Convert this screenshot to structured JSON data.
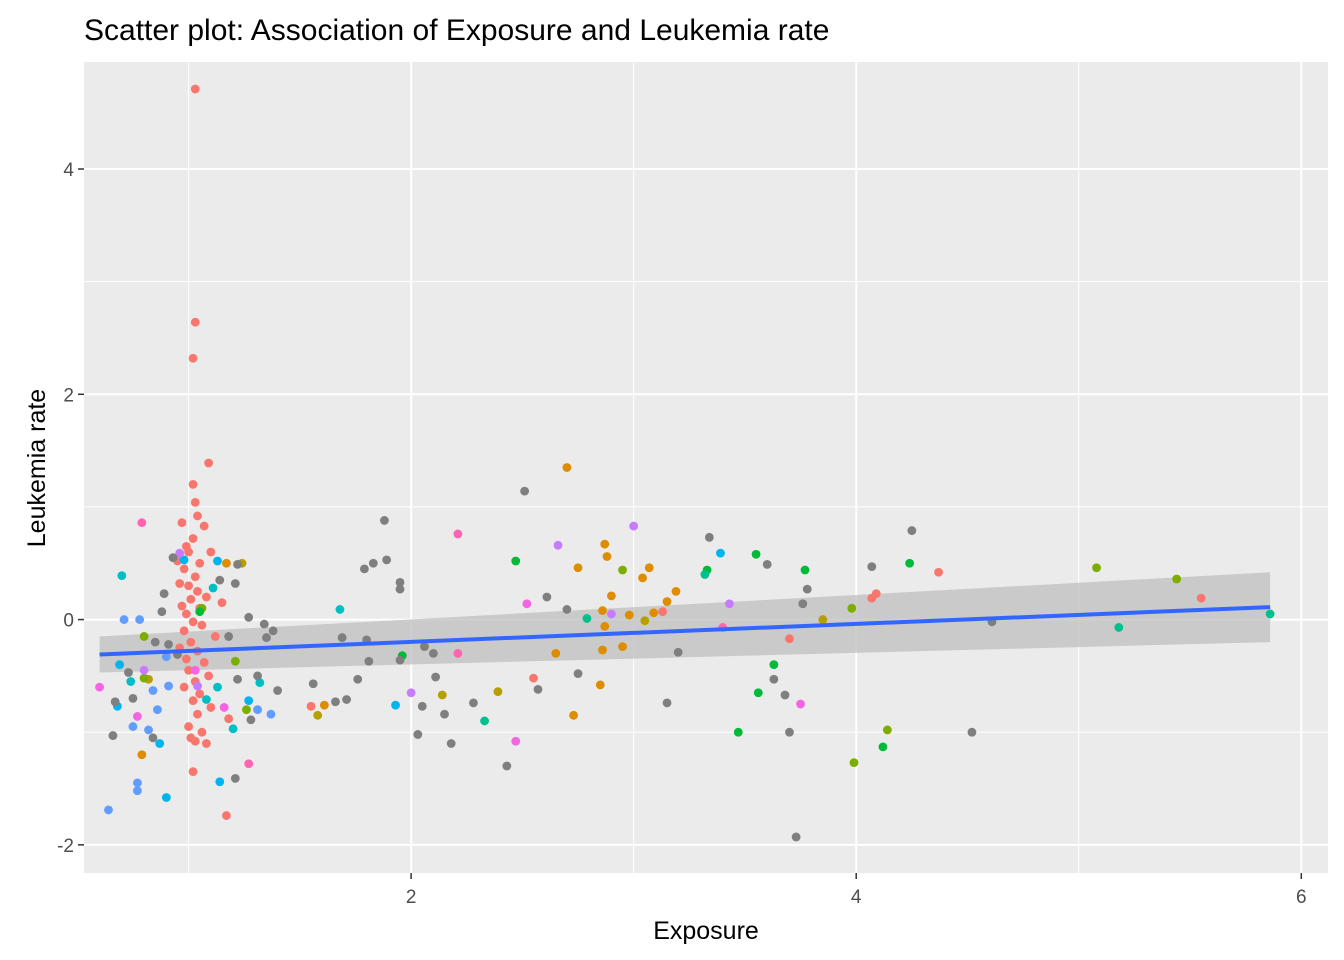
{
  "chart_data": {
    "type": "scatter",
    "title": "Scatter plot: Association of Exposure and Leukemia rate",
    "xlabel": "Exposure",
    "ylabel": "Leukemia rate",
    "xlim": [
      0.53,
      6.12
    ],
    "ylim": [
      -2.25,
      4.95
    ],
    "x_ticks": [
      2,
      4,
      6
    ],
    "y_ticks": [
      -2,
      0,
      2,
      4
    ],
    "x_tick_labels": [
      "2",
      "4",
      "6"
    ],
    "y_tick_labels": [
      "-2",
      "0",
      "2",
      "4"
    ],
    "grid": true,
    "panel_background": "#ebebeb",
    "grid_color": "#ffffff",
    "legend": "none",
    "palette": [
      "#f8766d",
      "#de8c00",
      "#b79f00",
      "#7cae00",
      "#00ba38",
      "#00c08b",
      "#00bfc4",
      "#00b4f0",
      "#619cff",
      "#c77cff",
      "#f564e3",
      "#ff64b0",
      "#7f7f7f"
    ],
    "points": [
      {
        "x": 1.03,
        "y": 4.71,
        "c": 0
      },
      {
        "x": 1.03,
        "y": 2.64,
        "c": 0
      },
      {
        "x": 1.02,
        "y": 2.32,
        "c": 0
      },
      {
        "x": 1.09,
        "y": 1.39,
        "c": 0
      },
      {
        "x": 1.02,
        "y": 1.2,
        "c": 0
      },
      {
        "x": 1.03,
        "y": 1.04,
        "c": 0
      },
      {
        "x": 1.04,
        "y": 0.92,
        "c": 0
      },
      {
        "x": 0.97,
        "y": 0.86,
        "c": 0
      },
      {
        "x": 1.07,
        "y": 0.83,
        "c": 0
      },
      {
        "x": 1.02,
        "y": 0.72,
        "c": 0
      },
      {
        "x": 0.99,
        "y": 0.65,
        "c": 0
      },
      {
        "x": 1.0,
        "y": 0.6,
        "c": 0
      },
      {
        "x": 1.1,
        "y": 0.6,
        "c": 0
      },
      {
        "x": 0.95,
        "y": 0.52,
        "c": 0
      },
      {
        "x": 1.05,
        "y": 0.5,
        "c": 0
      },
      {
        "x": 0.98,
        "y": 0.45,
        "c": 0
      },
      {
        "x": 1.03,
        "y": 0.38,
        "c": 0
      },
      {
        "x": 0.96,
        "y": 0.32,
        "c": 0
      },
      {
        "x": 1.0,
        "y": 0.3,
        "c": 0
      },
      {
        "x": 1.04,
        "y": 0.25,
        "c": 0
      },
      {
        "x": 1.08,
        "y": 0.2,
        "c": 0
      },
      {
        "x": 1.01,
        "y": 0.18,
        "c": 0
      },
      {
        "x": 0.97,
        "y": 0.12,
        "c": 0
      },
      {
        "x": 1.05,
        "y": 0.1,
        "c": 0
      },
      {
        "x": 1.15,
        "y": 0.15,
        "c": 0
      },
      {
        "x": 0.99,
        "y": 0.05,
        "c": 0
      },
      {
        "x": 1.02,
        "y": -0.02,
        "c": 0
      },
      {
        "x": 1.06,
        "y": -0.05,
        "c": 0
      },
      {
        "x": 0.98,
        "y": -0.1,
        "c": 0
      },
      {
        "x": 1.12,
        "y": -0.15,
        "c": 0
      },
      {
        "x": 1.01,
        "y": -0.2,
        "c": 0
      },
      {
        "x": 0.96,
        "y": -0.25,
        "c": 0
      },
      {
        "x": 1.04,
        "y": -0.28,
        "c": 0
      },
      {
        "x": 0.99,
        "y": -0.35,
        "c": 0
      },
      {
        "x": 1.07,
        "y": -0.38,
        "c": 0
      },
      {
        "x": 1.0,
        "y": -0.45,
        "c": 0
      },
      {
        "x": 1.09,
        "y": -0.5,
        "c": 0
      },
      {
        "x": 1.03,
        "y": -0.55,
        "c": 0
      },
      {
        "x": 0.98,
        "y": -0.6,
        "c": 0
      },
      {
        "x": 1.05,
        "y": -0.66,
        "c": 0
      },
      {
        "x": 1.02,
        "y": -0.72,
        "c": 0
      },
      {
        "x": 1.1,
        "y": -0.78,
        "c": 0
      },
      {
        "x": 1.04,
        "y": -0.84,
        "c": 0
      },
      {
        "x": 1.18,
        "y": -0.88,
        "c": 0
      },
      {
        "x": 1.0,
        "y": -0.95,
        "c": 0
      },
      {
        "x": 1.06,
        "y": -1.0,
        "c": 0
      },
      {
        "x": 1.01,
        "y": -1.05,
        "c": 0
      },
      {
        "x": 1.03,
        "y": -1.08,
        "c": 0
      },
      {
        "x": 1.08,
        "y": -1.1,
        "c": 0
      },
      {
        "x": 1.02,
        "y": -1.35,
        "c": 0
      },
      {
        "x": 1.17,
        "y": -1.74,
        "c": 0
      },
      {
        "x": 1.55,
        "y": -0.77,
        "c": 0
      },
      {
        "x": 2.55,
        "y": -0.52,
        "c": 0
      },
      {
        "x": 3.7,
        "y": -0.17,
        "c": 0
      },
      {
        "x": 3.13,
        "y": 0.07,
        "c": 0
      },
      {
        "x": 4.07,
        "y": 0.19,
        "c": 0
      },
      {
        "x": 4.09,
        "y": 0.23,
        "c": 0
      },
      {
        "x": 4.37,
        "y": 0.42,
        "c": 0
      },
      {
        "x": 5.55,
        "y": 0.19,
        "c": 0
      },
      {
        "x": 2.7,
        "y": 1.35,
        "c": 1
      },
      {
        "x": 2.87,
        "y": 0.67,
        "c": 1
      },
      {
        "x": 2.88,
        "y": 0.56,
        "c": 1
      },
      {
        "x": 2.75,
        "y": 0.46,
        "c": 1
      },
      {
        "x": 3.07,
        "y": 0.46,
        "c": 1
      },
      {
        "x": 3.04,
        "y": 0.37,
        "c": 1
      },
      {
        "x": 3.19,
        "y": 0.25,
        "c": 1
      },
      {
        "x": 2.9,
        "y": 0.21,
        "c": 1
      },
      {
        "x": 3.15,
        "y": 0.16,
        "c": 1
      },
      {
        "x": 2.86,
        "y": 0.08,
        "c": 1
      },
      {
        "x": 3.09,
        "y": 0.06,
        "c": 1
      },
      {
        "x": 2.98,
        "y": 0.04,
        "c": 1
      },
      {
        "x": 2.87,
        "y": -0.06,
        "c": 1
      },
      {
        "x": 2.95,
        "y": -0.24,
        "c": 1
      },
      {
        "x": 2.86,
        "y": -0.27,
        "c": 1
      },
      {
        "x": 2.65,
        "y": -0.3,
        "c": 1
      },
      {
        "x": 2.85,
        "y": -0.58,
        "c": 1
      },
      {
        "x": 2.73,
        "y": -0.85,
        "c": 1
      },
      {
        "x": 1.61,
        "y": -0.76,
        "c": 1
      },
      {
        "x": 0.79,
        "y": -1.2,
        "c": 1
      },
      {
        "x": 1.17,
        "y": 0.5,
        "c": 1
      },
      {
        "x": 2.14,
        "y": -0.67,
        "c": 2
      },
      {
        "x": 2.39,
        "y": -0.64,
        "c": 2
      },
      {
        "x": 3.05,
        "y": -0.01,
        "c": 2
      },
      {
        "x": 3.85,
        "y": 0.0,
        "c": 2
      },
      {
        "x": 1.58,
        "y": -0.85,
        "c": 2
      },
      {
        "x": 0.82,
        "y": -0.53,
        "c": 2
      },
      {
        "x": 1.24,
        "y": 0.5,
        "c": 2
      },
      {
        "x": 0.8,
        "y": -0.15,
        "c": 3
      },
      {
        "x": 0.8,
        "y": -0.52,
        "c": 3
      },
      {
        "x": 1.21,
        "y": -0.37,
        "c": 3
      },
      {
        "x": 1.26,
        "y": -0.8,
        "c": 3
      },
      {
        "x": 2.95,
        "y": 0.44,
        "c": 3
      },
      {
        "x": 3.98,
        "y": 0.1,
        "c": 3
      },
      {
        "x": 3.99,
        "y": -1.27,
        "c": 3
      },
      {
        "x": 4.14,
        "y": -0.98,
        "c": 3
      },
      {
        "x": 5.08,
        "y": 0.46,
        "c": 3
      },
      {
        "x": 5.44,
        "y": 0.36,
        "c": 3
      },
      {
        "x": 1.06,
        "y": 0.1,
        "c": 3
      },
      {
        "x": 2.47,
        "y": 0.52,
        "c": 4
      },
      {
        "x": 3.33,
        "y": 0.44,
        "c": 4
      },
      {
        "x": 3.55,
        "y": 0.58,
        "c": 4
      },
      {
        "x": 3.77,
        "y": 0.44,
        "c": 4
      },
      {
        "x": 4.24,
        "y": 0.5,
        "c": 4
      },
      {
        "x": 3.63,
        "y": -0.4,
        "c": 4
      },
      {
        "x": 3.56,
        "y": -0.65,
        "c": 4
      },
      {
        "x": 3.47,
        "y": -1.0,
        "c": 4
      },
      {
        "x": 4.12,
        "y": -1.13,
        "c": 4
      },
      {
        "x": 1.96,
        "y": -0.32,
        "c": 4
      },
      {
        "x": 1.05,
        "y": 0.07,
        "c": 4
      },
      {
        "x": 2.79,
        "y": 0.01,
        "c": 5
      },
      {
        "x": 3.32,
        "y": 0.4,
        "c": 5
      },
      {
        "x": 2.33,
        "y": -0.9,
        "c": 5
      },
      {
        "x": 5.18,
        "y": -0.07,
        "c": 5
      },
      {
        "x": 5.86,
        "y": 0.05,
        "c": 5
      },
      {
        "x": 0.7,
        "y": 0.39,
        "c": 6
      },
      {
        "x": 0.74,
        "y": -0.55,
        "c": 6
      },
      {
        "x": 1.08,
        "y": -0.71,
        "c": 6
      },
      {
        "x": 1.13,
        "y": -0.6,
        "c": 6
      },
      {
        "x": 1.2,
        "y": -0.97,
        "c": 6
      },
      {
        "x": 1.32,
        "y": -0.56,
        "c": 6
      },
      {
        "x": 1.11,
        "y": 0.28,
        "c": 6
      },
      {
        "x": 1.68,
        "y": 0.09,
        "c": 6
      },
      {
        "x": 0.98,
        "y": 0.53,
        "c": 7
      },
      {
        "x": 1.13,
        "y": 0.52,
        "c": 7
      },
      {
        "x": 3.39,
        "y": 0.59,
        "c": 7
      },
      {
        "x": 1.93,
        "y": -0.76,
        "c": 7
      },
      {
        "x": 1.27,
        "y": -0.72,
        "c": 7
      },
      {
        "x": 0.87,
        "y": -1.1,
        "c": 7
      },
      {
        "x": 1.14,
        "y": -1.44,
        "c": 7
      },
      {
        "x": 0.68,
        "y": -0.77,
        "c": 7
      },
      {
        "x": 0.69,
        "y": -0.4,
        "c": 7
      },
      {
        "x": 0.9,
        "y": -1.58,
        "c": 7
      },
      {
        "x": 0.71,
        "y": 0.0,
        "c": 8
      },
      {
        "x": 0.77,
        "y": -1.45,
        "c": 8
      },
      {
        "x": 0.77,
        "y": -1.52,
        "c": 8
      },
      {
        "x": 0.84,
        "y": -0.63,
        "c": 8
      },
      {
        "x": 0.75,
        "y": -0.95,
        "c": 8
      },
      {
        "x": 0.82,
        "y": -0.98,
        "c": 8
      },
      {
        "x": 0.86,
        "y": -0.8,
        "c": 8
      },
      {
        "x": 0.9,
        "y": -0.33,
        "c": 8
      },
      {
        "x": 0.78,
        "y": 0.0,
        "c": 8
      },
      {
        "x": 1.31,
        "y": -0.8,
        "c": 8
      },
      {
        "x": 1.37,
        "y": -0.84,
        "c": 8
      },
      {
        "x": 0.64,
        "y": -1.69,
        "c": 8
      },
      {
        "x": 0.91,
        "y": -0.59,
        "c": 8
      },
      {
        "x": 0.96,
        "y": 0.59,
        "c": 9
      },
      {
        "x": 2.66,
        "y": 0.66,
        "c": 9
      },
      {
        "x": 3.0,
        "y": 0.83,
        "c": 9
      },
      {
        "x": 3.43,
        "y": 0.14,
        "c": 9
      },
      {
        "x": 2.9,
        "y": 0.05,
        "c": 9
      },
      {
        "x": 2.0,
        "y": -0.65,
        "c": 9
      },
      {
        "x": 1.04,
        "y": -0.59,
        "c": 9
      },
      {
        "x": 0.8,
        "y": -0.45,
        "c": 9
      },
      {
        "x": 0.77,
        "y": -0.86,
        "c": 10
      },
      {
        "x": 2.47,
        "y": -1.08,
        "c": 10
      },
      {
        "x": 2.52,
        "y": 0.14,
        "c": 10
      },
      {
        "x": 3.75,
        "y": -0.75,
        "c": 10
      },
      {
        "x": 1.16,
        "y": -0.78,
        "c": 10
      },
      {
        "x": 1.03,
        "y": -0.45,
        "c": 10
      },
      {
        "x": 0.6,
        "y": -0.6,
        "c": 10
      },
      {
        "x": 0.79,
        "y": 0.86,
        "c": 11
      },
      {
        "x": 2.21,
        "y": 0.76,
        "c": 11
      },
      {
        "x": 2.21,
        "y": -0.3,
        "c": 11
      },
      {
        "x": 1.27,
        "y": -1.28,
        "c": 11
      },
      {
        "x": 3.4,
        "y": -0.07,
        "c": 11
      },
      {
        "x": 1.88,
        "y": 0.88,
        "c": 12
      },
      {
        "x": 1.89,
        "y": 0.53,
        "c": 12
      },
      {
        "x": 1.95,
        "y": 0.33,
        "c": 12
      },
      {
        "x": 1.95,
        "y": 0.27,
        "c": 12
      },
      {
        "x": 1.83,
        "y": 0.5,
        "c": 12
      },
      {
        "x": 1.79,
        "y": 0.45,
        "c": 12
      },
      {
        "x": 2.51,
        "y": 1.14,
        "c": 12
      },
      {
        "x": 2.61,
        "y": 0.2,
        "c": 12
      },
      {
        "x": 2.7,
        "y": 0.09,
        "c": 12
      },
      {
        "x": 3.34,
        "y": 0.73,
        "c": 12
      },
      {
        "x": 3.6,
        "y": 0.49,
        "c": 12
      },
      {
        "x": 4.07,
        "y": 0.47,
        "c": 12
      },
      {
        "x": 4.25,
        "y": 0.79,
        "c": 12
      },
      {
        "x": 3.78,
        "y": 0.27,
        "c": 12
      },
      {
        "x": 3.76,
        "y": 0.14,
        "c": 12
      },
      {
        "x": 4.61,
        "y": -0.02,
        "c": 12
      },
      {
        "x": 3.2,
        "y": -0.29,
        "c": 12
      },
      {
        "x": 2.75,
        "y": -0.48,
        "c": 12
      },
      {
        "x": 3.63,
        "y": -0.53,
        "c": 12
      },
      {
        "x": 3.68,
        "y": -0.67,
        "c": 12
      },
      {
        "x": 3.7,
        "y": -1.0,
        "c": 12
      },
      {
        "x": 3.73,
        "y": -1.93,
        "c": 12
      },
      {
        "x": 4.52,
        "y": -1.0,
        "c": 12
      },
      {
        "x": 3.15,
        "y": -0.74,
        "c": 12
      },
      {
        "x": 2.43,
        "y": -1.3,
        "c": 12
      },
      {
        "x": 2.57,
        "y": -0.62,
        "c": 12
      },
      {
        "x": 2.18,
        "y": -1.1,
        "c": 12
      },
      {
        "x": 2.28,
        "y": -0.74,
        "c": 12
      },
      {
        "x": 2.03,
        "y": -1.02,
        "c": 12
      },
      {
        "x": 2.05,
        "y": -0.77,
        "c": 12
      },
      {
        "x": 2.11,
        "y": -0.51,
        "c": 12
      },
      {
        "x": 2.15,
        "y": -0.84,
        "c": 12
      },
      {
        "x": 2.1,
        "y": -0.3,
        "c": 12
      },
      {
        "x": 2.06,
        "y": -0.24,
        "c": 12
      },
      {
        "x": 1.95,
        "y": -0.36,
        "c": 12
      },
      {
        "x": 1.81,
        "y": -0.37,
        "c": 12
      },
      {
        "x": 1.76,
        "y": -0.53,
        "c": 12
      },
      {
        "x": 1.71,
        "y": -0.71,
        "c": 12
      },
      {
        "x": 1.66,
        "y": -0.73,
        "c": 12
      },
      {
        "x": 1.69,
        "y": -0.16,
        "c": 12
      },
      {
        "x": 1.8,
        "y": -0.18,
        "c": 12
      },
      {
        "x": 1.56,
        "y": -0.57,
        "c": 12
      },
      {
        "x": 1.4,
        "y": -0.63,
        "c": 12
      },
      {
        "x": 1.38,
        "y": -0.1,
        "c": 12
      },
      {
        "x": 1.34,
        "y": -0.04,
        "c": 12
      },
      {
        "x": 1.35,
        "y": -0.16,
        "c": 12
      },
      {
        "x": 1.27,
        "y": 0.02,
        "c": 12
      },
      {
        "x": 1.22,
        "y": 0.49,
        "c": 12
      },
      {
        "x": 1.21,
        "y": 0.32,
        "c": 12
      },
      {
        "x": 1.14,
        "y": 0.35,
        "c": 12
      },
      {
        "x": 1.18,
        "y": -0.15,
        "c": 12
      },
      {
        "x": 1.22,
        "y": -0.53,
        "c": 12
      },
      {
        "x": 1.21,
        "y": -1.41,
        "c": 12
      },
      {
        "x": 1.28,
        "y": -0.89,
        "c": 12
      },
      {
        "x": 1.31,
        "y": -0.5,
        "c": 12
      },
      {
        "x": 0.88,
        "y": 0.07,
        "c": 12
      },
      {
        "x": 0.89,
        "y": 0.23,
        "c": 12
      },
      {
        "x": 0.93,
        "y": 0.55,
        "c": 12
      },
      {
        "x": 0.85,
        "y": -0.2,
        "c": 12
      },
      {
        "x": 0.75,
        "y": -0.7,
        "c": 12
      },
      {
        "x": 0.66,
        "y": -1.03,
        "c": 12
      },
      {
        "x": 0.67,
        "y": -0.73,
        "c": 12
      },
      {
        "x": 0.73,
        "y": -0.47,
        "c": 12
      },
      {
        "x": 0.84,
        "y": -1.05,
        "c": 12
      },
      {
        "x": 0.91,
        "y": -0.22,
        "c": 12
      },
      {
        "x": 0.95,
        "y": -0.31,
        "c": 12
      }
    ],
    "fit": {
      "type": "line",
      "color": "#3366ff",
      "x": [
        0.6,
        5.86
      ],
      "y": [
        -0.31,
        0.11
      ],
      "ci_lower": [
        -0.47,
        -0.2
      ],
      "ci_upper": [
        -0.15,
        0.42
      ],
      "ci_color": "#bfbfbf"
    }
  }
}
